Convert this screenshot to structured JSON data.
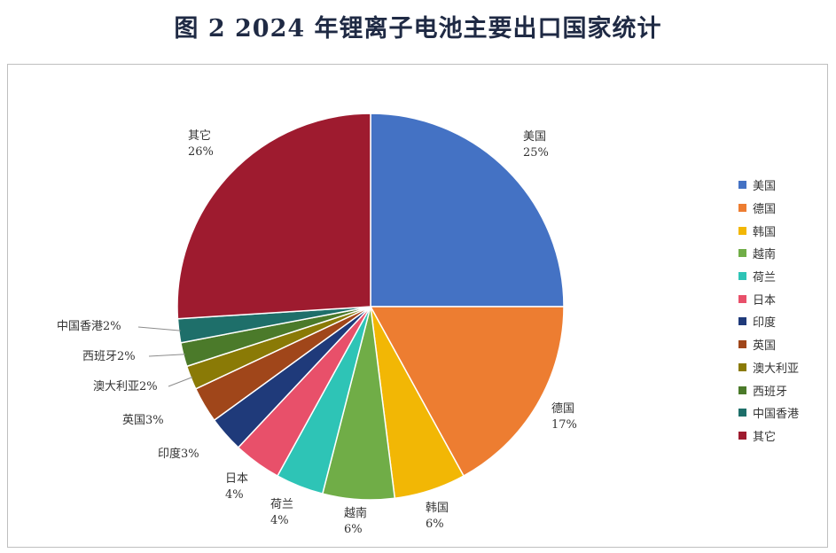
{
  "title": "图 2   2024 年锂离子电池主要出口国家统计",
  "chart_data": {
    "type": "pie",
    "categories": [
      "美国",
      "德国",
      "韩国",
      "越南",
      "荷兰",
      "日本",
      "印度",
      "英国",
      "澳大利亚",
      "西班牙",
      "中国香港",
      "其它"
    ],
    "values": [
      25,
      17,
      6,
      6,
      4,
      4,
      3,
      3,
      2,
      2,
      2,
      26
    ],
    "labels": [
      "25%",
      "17%",
      "6%",
      "6%",
      "4%",
      "4%",
      "3%",
      "3%",
      "2%",
      "2%",
      "2%",
      "26%"
    ],
    "colors": [
      "#4472C4",
      "#ED7D31",
      "#F2B705",
      "#70AD47",
      "#2EC4B6",
      "#E8506A",
      "#1F3A7A",
      "#A0461A",
      "#8A7A06",
      "#4B7A2A",
      "#1E6F6A",
      "#9E1B2F"
    ],
    "legend_position": "right"
  }
}
